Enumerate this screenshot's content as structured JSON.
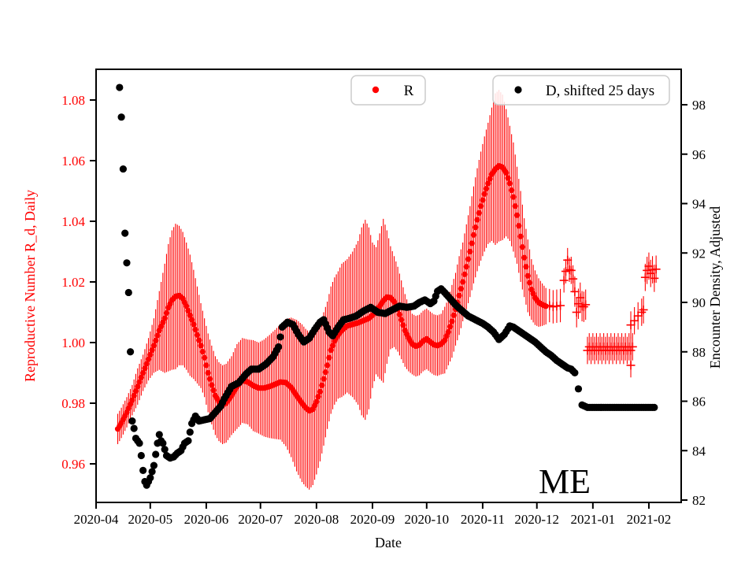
{
  "legends": [
    {
      "label": "R",
      "marker_color": "#ff0000"
    },
    {
      "label": "D, shifted 25 days",
      "marker_color": "#000000"
    }
  ],
  "chart_data": {
    "type": "scatter",
    "title": "",
    "xlabel": "Date",
    "annotation": "ME",
    "grid": false,
    "legend_position": "upper center, two separate boxes",
    "x_axis": {
      "epoch": "2020-04-01",
      "tick_labels": [
        "2020-04",
        "2020-05",
        "2020-06",
        "2020-07",
        "2020-08",
        "2020-09",
        "2020-10",
        "2020-11",
        "2020-12",
        "2021-01",
        "2021-02"
      ],
      "tick_day_offsets": [
        0,
        30,
        61,
        91,
        122,
        153,
        183,
        214,
        244,
        275,
        306
      ]
    },
    "y_left": {
      "label": "Reproductive Number R_d, Daily",
      "color": "#ff0000",
      "tick_labels": [
        "1.08",
        "1.06",
        "1.04",
        "1.02",
        "1.00",
        "0.98",
        "0.96"
      ],
      "tick_values": [
        1.08,
        1.06,
        1.04,
        1.02,
        1.0,
        0.98,
        0.96
      ],
      "range": [
        0.947,
        1.09
      ]
    },
    "y_right": {
      "label": "Encounter Density, Adjusted",
      "color": "#000000",
      "tick_labels": [
        "98",
        "96",
        "94",
        "92",
        "90",
        "88",
        "86",
        "84",
        "82"
      ],
      "tick_values": [
        98,
        96,
        94,
        92,
        90,
        88,
        86,
        84,
        82
      ],
      "range": [
        81.9,
        99.4
      ]
    },
    "series": [
      {
        "name": "R",
        "axis": "left",
        "color": "#ff0000",
        "marker": "dot-with-errorbar",
        "points_day_value_err": [
          [
            12,
            0.9715,
            0.005
          ],
          [
            14,
            0.9735,
            0.005
          ],
          [
            17,
            0.977,
            0.005
          ],
          [
            20,
            0.981,
            0.005
          ],
          [
            23,
            0.9855,
            0.006
          ],
          [
            26,
            0.99,
            0.006
          ],
          [
            29,
            0.9945,
            0.007
          ],
          [
            32,
            0.999,
            0.009
          ],
          [
            35,
            1.004,
            0.013
          ],
          [
            38,
            1.008,
            0.018
          ],
          [
            40,
            1.0115,
            0.021
          ],
          [
            42,
            1.014,
            0.023
          ],
          [
            44,
            1.0152,
            0.024
          ],
          [
            46,
            1.0155,
            0.023
          ],
          [
            48,
            1.0145,
            0.022
          ],
          [
            50,
            1.012,
            0.021
          ],
          [
            52,
            1.009,
            0.02
          ],
          [
            54,
            1.006,
            0.018
          ],
          [
            56,
            1.0025,
            0.016
          ],
          [
            58,
            0.999,
            0.014
          ],
          [
            60,
            0.995,
            0.013
          ],
          [
            62,
            0.99,
            0.013
          ],
          [
            64,
            0.986,
            0.013
          ],
          [
            66,
            0.9825,
            0.013
          ],
          [
            68,
            0.9805,
            0.013
          ],
          [
            70,
            0.9795,
            0.013
          ],
          [
            72,
            0.98,
            0.013
          ],
          [
            75,
            0.9825,
            0.013
          ],
          [
            78,
            0.9855,
            0.014
          ],
          [
            81,
            0.9875,
            0.014
          ],
          [
            84,
            0.987,
            0.014
          ],
          [
            87,
            0.9858,
            0.015
          ],
          [
            90,
            0.985,
            0.015
          ],
          [
            93,
            0.985,
            0.016
          ],
          [
            96,
            0.9855,
            0.017
          ],
          [
            99,
            0.9862,
            0.018
          ],
          [
            102,
            0.987,
            0.019
          ],
          [
            105,
            0.9868,
            0.021
          ],
          [
            108,
            0.9852,
            0.023
          ],
          [
            111,
            0.9825,
            0.025
          ],
          [
            114,
            0.98,
            0.026
          ],
          [
            116,
            0.9785,
            0.026
          ],
          [
            118,
            0.9775,
            0.026
          ],
          [
            120,
            0.978,
            0.025
          ],
          [
            122,
            0.9805,
            0.024
          ],
          [
            124,
            0.9838,
            0.023
          ],
          [
            126,
            0.988,
            0.022
          ],
          [
            128,
            0.9925,
            0.021
          ],
          [
            130,
            0.9975,
            0.021
          ],
          [
            132,
            1.0005,
            0.021
          ],
          [
            134,
            1.0025,
            0.021
          ],
          [
            136,
            1.004,
            0.022
          ],
          [
            139,
            1.0055,
            0.022
          ],
          [
            142,
            1.006,
            0.024
          ],
          [
            145,
            1.0065,
            0.027
          ],
          [
            147,
            1.007,
            0.031
          ],
          [
            149,
            1.0075,
            0.033
          ],
          [
            151,
            1.008,
            0.03
          ],
          [
            153,
            1.009,
            0.024
          ],
          [
            155,
            1.0105,
            0.021
          ],
          [
            157,
            1.012,
            0.024
          ],
          [
            159,
            1.0138,
            0.027
          ],
          [
            161,
            1.015,
            0.022
          ],
          [
            163,
            1.0148,
            0.017
          ],
          [
            165,
            1.0135,
            0.015
          ],
          [
            167,
            1.011,
            0.014
          ],
          [
            169,
            1.0075,
            0.013
          ],
          [
            171,
            1.004,
            0.012
          ],
          [
            173,
            1.0015,
            0.011
          ],
          [
            175,
            0.9995,
            0.01
          ],
          [
            177,
            0.9988,
            0.01
          ],
          [
            179,
            0.9992,
            0.01
          ],
          [
            181,
            1.0005,
            0.01
          ],
          [
            183,
            1.0012,
            0.01
          ],
          [
            185,
            1.0002,
            0.01
          ],
          [
            187,
            0.9993,
            0.01
          ],
          [
            189,
            0.999,
            0.01
          ],
          [
            191,
            0.9995,
            0.01
          ],
          [
            193,
            1.0008,
            0.011
          ],
          [
            195,
            1.0035,
            0.011
          ],
          [
            197,
            1.007,
            0.012
          ],
          [
            199,
            1.011,
            0.012
          ],
          [
            201,
            1.0155,
            0.013
          ],
          [
            203,
            1.02,
            0.013
          ],
          [
            205,
            1.025,
            0.014
          ],
          [
            207,
            1.03,
            0.015
          ],
          [
            209,
            1.0355,
            0.016
          ],
          [
            211,
            1.0405,
            0.017
          ],
          [
            213,
            1.045,
            0.018
          ],
          [
            215,
            1.049,
            0.019
          ],
          [
            217,
            1.0525,
            0.02
          ],
          [
            219,
            1.0555,
            0.022
          ],
          [
            221,
            1.0572,
            0.025
          ],
          [
            223,
            1.0583,
            0.025
          ],
          [
            225,
            1.0578,
            0.024
          ],
          [
            227,
            1.056,
            0.021
          ],
          [
            229,
            1.0525,
            0.019
          ],
          [
            231,
            1.048,
            0.018
          ],
          [
            233,
            1.042,
            0.016
          ],
          [
            235,
            1.035,
            0.015
          ],
          [
            237,
            1.028,
            0.013
          ],
          [
            239,
            1.022,
            0.012
          ],
          [
            241,
            1.0175,
            0.01
          ],
          [
            243,
            1.0148,
            0.009
          ],
          [
            245,
            1.0132,
            0.008
          ],
          [
            247,
            1.0125,
            0.007
          ],
          [
            249,
            1.012,
            0.006
          ]
        ],
        "plus_points_day_value_err": [
          [
            251,
            1.0122,
            0.0055
          ],
          [
            253,
            1.0118,
            0.0055
          ],
          [
            255,
            1.012,
            0.0055
          ],
          [
            257,
            1.0122,
            0.0055
          ],
          [
            259,
            1.0205,
            0.004
          ],
          [
            260,
            1.0235,
            0.004
          ],
          [
            261,
            1.0272,
            0.004
          ],
          [
            262,
            1.024,
            0.004
          ],
          [
            263,
            1.0238,
            0.0045
          ],
          [
            264,
            1.021,
            0.0045
          ],
          [
            265,
            1.0168,
            0.005
          ],
          [
            266,
            1.01,
            0.005
          ],
          [
            267,
            1.0128,
            0.005
          ],
          [
            268,
            1.0148,
            0.005
          ],
          [
            269,
            1.012,
            0.005
          ],
          [
            270,
            1.0118,
            0.005
          ],
          [
            271,
            1.0125,
            0.005
          ],
          [
            296,
            0.9925,
            0.004
          ],
          [
            296,
            1.0058,
            0.0045
          ],
          [
            298,
            1.0072,
            0.0045
          ],
          [
            300,
            1.0088,
            0.0045
          ],
          [
            302,
            1.01,
            0.0045
          ],
          [
            303,
            1.0108,
            0.0045
          ],
          [
            304,
            1.0215,
            0.0045
          ],
          [
            305,
            1.0238,
            0.0045
          ],
          [
            306,
            1.0252,
            0.0045
          ],
          [
            307,
            1.0228,
            0.0045
          ],
          [
            308,
            1.024,
            0.0045
          ],
          [
            309,
            1.0212,
            0.0045
          ],
          [
            310,
            1.0242,
            0.0045
          ]
        ],
        "plus_runs": [
          {
            "from": 272,
            "to": 297,
            "value": 0.998,
            "jitter": 0.0006,
            "err": 0.0045
          }
        ]
      },
      {
        "name": "D, shifted 25 days",
        "axis": "right",
        "color": "#000000",
        "marker": "dot",
        "segments_day_value": [
          [
            [
              13,
              98.7
            ],
            [
              14,
              97.5
            ],
            [
              15,
              95.4
            ],
            [
              16,
              92.8
            ],
            [
              18,
              90.4
            ],
            [
              19,
              88.0
            ],
            [
              20,
              85.2
            ],
            [
              21,
              84.9
            ],
            [
              22,
              84.5
            ],
            [
              24,
              84.3
            ],
            [
              25,
              83.8
            ],
            [
              26,
              83.2
            ],
            [
              27,
              82.75
            ],
            [
              28,
              82.6
            ],
            [
              30,
              82.9
            ],
            [
              32,
              83.4
            ],
            [
              34,
              84.3
            ],
            [
              35,
              84.65
            ],
            [
              36,
              84.4
            ],
            [
              37,
              84.3
            ],
            [
              39,
              83.8
            ],
            [
              41,
              83.7
            ],
            [
              43,
              83.75
            ],
            [
              45,
              83.9
            ],
            [
              47,
              84.0
            ],
            [
              49,
              84.3
            ],
            [
              51,
              84.4
            ],
            [
              53,
              85.1
            ],
            [
              55,
              85.4
            ],
            [
              57,
              85.2
            ],
            [
              60,
              85.25
            ],
            [
              63,
              85.3
            ],
            [
              66,
              85.55
            ],
            [
              69,
              85.8
            ],
            [
              71,
              86.1
            ],
            [
              75,
              86.6
            ],
            [
              79,
              86.75
            ],
            [
              83,
              87.1
            ],
            [
              86,
              87.3
            ],
            [
              90,
              87.3
            ],
            [
              94,
              87.5
            ],
            [
              98,
              87.8
            ],
            [
              101,
              88.2
            ],
            [
              103,
              89.0
            ],
            [
              106,
              89.2
            ],
            [
              109,
              89.1
            ],
            [
              112,
              88.7
            ],
            [
              115,
              88.4
            ],
            [
              118,
              88.55
            ],
            [
              121,
              88.9
            ],
            [
              124,
              89.2
            ],
            [
              126,
              89.3
            ],
            [
              129,
              88.8
            ],
            [
              131,
              88.65
            ],
            [
              134,
              89.0
            ],
            [
              137,
              89.3
            ],
            [
              140,
              89.35
            ],
            [
              144,
              89.45
            ],
            [
              148,
              89.65
            ],
            [
              152,
              89.8
            ],
            [
              156,
              89.6
            ],
            [
              160,
              89.55
            ],
            [
              164,
              89.7
            ],
            [
              168,
              89.85
            ],
            [
              172,
              89.8
            ],
            [
              176,
              89.85
            ],
            [
              179,
              90.0
            ],
            [
              182,
              90.1
            ],
            [
              185,
              89.95
            ],
            [
              187,
              90.05
            ],
            [
              189,
              90.45
            ],
            [
              191,
              90.55
            ],
            [
              193,
              90.4
            ],
            [
              196,
              90.15
            ],
            [
              199,
              89.9
            ],
            [
              202,
              89.7
            ],
            [
              206,
              89.45
            ],
            [
              210,
              89.3
            ],
            [
              214,
              89.15
            ],
            [
              217,
              89.0
            ],
            [
              220,
              88.8
            ],
            [
              223,
              88.5
            ],
            [
              226,
              88.7
            ],
            [
              229,
              89.05
            ],
            [
              231,
              89.0
            ],
            [
              233,
              88.9
            ],
            [
              236,
              88.75
            ],
            [
              240,
              88.55
            ],
            [
              243,
              88.4
            ],
            [
              246,
              88.2
            ],
            [
              249,
              88.0
            ],
            [
              252,
              87.85
            ],
            [
              255,
              87.65
            ],
            [
              258,
              87.5
            ],
            [
              261,
              87.35
            ],
            [
              263,
              87.3
            ],
            [
              265,
              87.15
            ]
          ],
          [
            [
              267,
              86.5
            ]
          ],
          [
            [
              269,
              85.85
            ],
            [
              272,
              85.75
            ],
            [
              309,
              85.75
            ]
          ]
        ]
      }
    ]
  }
}
